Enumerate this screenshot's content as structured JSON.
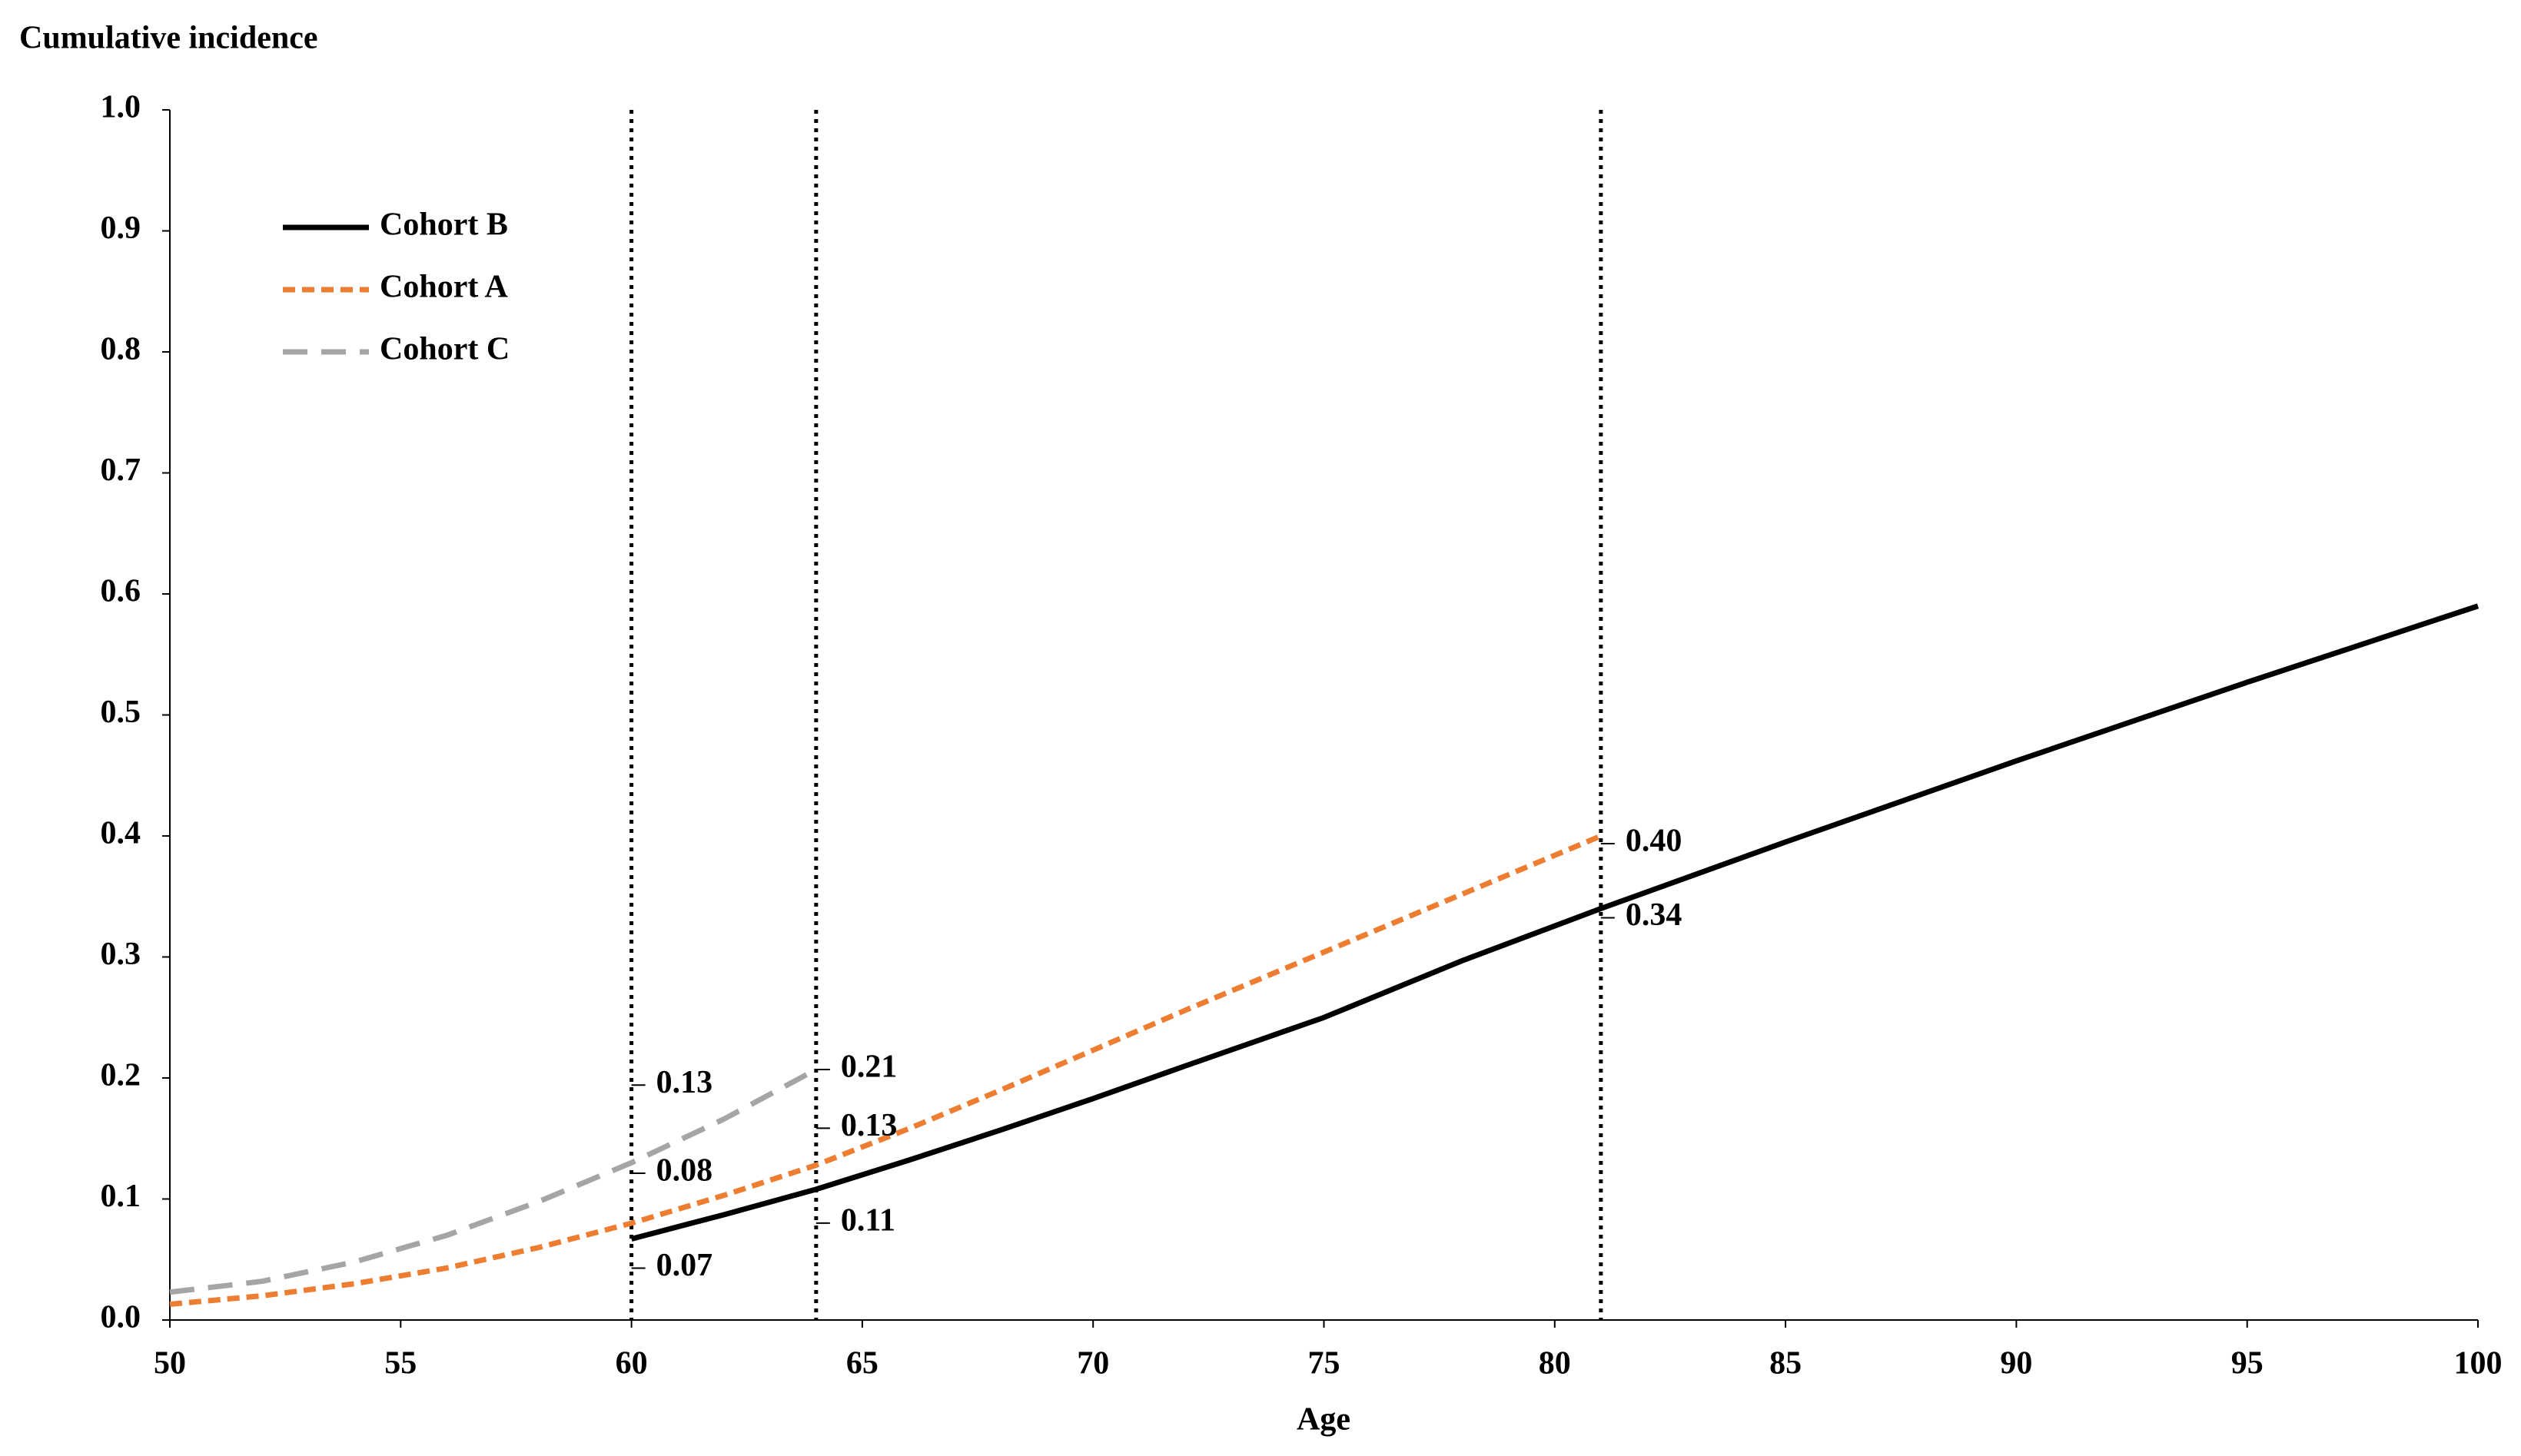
{
  "chart_data": {
    "type": "line",
    "y_axis_label": "Cumulative incidence",
    "x_axis_label": "Age",
    "xlim": [
      50,
      100
    ],
    "xticks": [
      50,
      55,
      60,
      65,
      70,
      75,
      80,
      85,
      90,
      95,
      100
    ],
    "ylim": [
      0,
      1
    ],
    "yticks": [
      {
        "value": 0,
        "label": "0.0"
      },
      0.1,
      0.2,
      0.3,
      0.4,
      0.5,
      0.6,
      0.7,
      0.8,
      0.9,
      {
        "value": 1,
        "label": "1.0"
      }
    ],
    "vlines": [
      60,
      64,
      81
    ],
    "legend_position": "upper left",
    "series": [
      {
        "name": "Cohort B",
        "color": "#000000",
        "line_style": "solid",
        "x": [
          60,
          62,
          64,
          66,
          68,
          70,
          72,
          75,
          78,
          81,
          85,
          90,
          95,
          100
        ],
        "values": [
          0.067,
          0.087,
          0.108,
          0.132,
          0.157,
          0.183,
          0.21,
          0.25,
          0.297,
          0.34,
          0.395,
          0.462,
          0.527,
          0.59
        ],
        "value_labels": [
          "0.07",
          null,
          "0.11",
          null,
          null,
          null,
          null,
          null,
          null,
          "0.34",
          null,
          null,
          null,
          null
        ]
      },
      {
        "name": "Cohort A",
        "color": "#ED7D31",
        "line_style": "dashed",
        "x": [
          50,
          52,
          54,
          56,
          58,
          60,
          62,
          64,
          66,
          68,
          70,
          72,
          74,
          76,
          78,
          80,
          81
        ],
        "values": [
          0.013,
          0.02,
          0.03,
          0.043,
          0.06,
          0.08,
          0.103,
          0.128,
          0.158,
          0.19,
          0.223,
          0.256,
          0.288,
          0.32,
          0.352,
          0.384,
          0.4
        ],
        "value_labels": [
          null,
          null,
          null,
          null,
          null,
          "0.08",
          null,
          "0.13",
          null,
          null,
          null,
          null,
          null,
          null,
          null,
          null,
          "0.40"
        ]
      },
      {
        "name": "Cohort C",
        "color": "#A5A5A5",
        "line_style": "long-dashed",
        "x": [
          50,
          52,
          54,
          56,
          58,
          60,
          62,
          64
        ],
        "values": [
          0.023,
          0.032,
          0.048,
          0.07,
          0.098,
          0.13,
          0.166,
          0.207
        ],
        "value_labels": [
          null,
          null,
          null,
          null,
          null,
          "0.13",
          null,
          "0.21"
        ]
      }
    ]
  }
}
